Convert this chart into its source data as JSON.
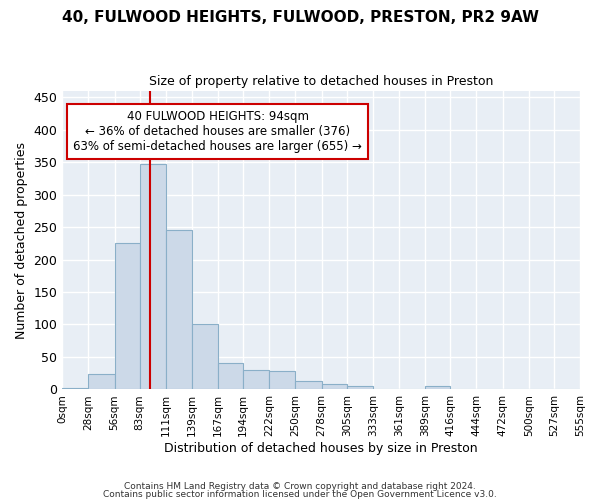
{
  "title": "40, FULWOOD HEIGHTS, FULWOOD, PRESTON, PR2 9AW",
  "subtitle": "Size of property relative to detached houses in Preston",
  "xlabel": "Distribution of detached houses by size in Preston",
  "ylabel": "Number of detached properties",
  "bar_color": "#ccd9e8",
  "bar_edge_color": "#8aafc8",
  "marker_line_color": "#cc0000",
  "marker_value": 94,
  "annotation_title": "40 FULWOOD HEIGHTS: 94sqm",
  "annotation_line1": "← 36% of detached houses are smaller (376)",
  "annotation_line2": "63% of semi-detached houses are larger (655) →",
  "annotation_box_color": "#ffffff",
  "annotation_box_edge_color": "#cc0000",
  "bins": [
    0,
    28,
    56,
    83,
    111,
    139,
    167,
    194,
    222,
    250,
    278,
    305,
    333,
    361,
    389,
    416,
    444,
    472,
    500,
    527,
    555
  ],
  "tick_labels": [
    "0sqm",
    "28sqm",
    "56sqm",
    "83sqm",
    "111sqm",
    "139sqm",
    "167sqm",
    "194sqm",
    "222sqm",
    "250sqm",
    "278sqm",
    "305sqm",
    "333sqm",
    "361sqm",
    "389sqm",
    "416sqm",
    "444sqm",
    "472sqm",
    "500sqm",
    "527sqm",
    "555sqm"
  ],
  "bar_heights": [
    2,
    24,
    226,
    347,
    246,
    101,
    40,
    30,
    29,
    13,
    9,
    6,
    1,
    0,
    5,
    0,
    1,
    0,
    0,
    1
  ],
  "ylim": [
    0,
    460
  ],
  "yticks": [
    0,
    50,
    100,
    150,
    200,
    250,
    300,
    350,
    400,
    450
  ],
  "footer1": "Contains HM Land Registry data © Crown copyright and database right 2024.",
  "footer2": "Contains public sector information licensed under the Open Government Licence v3.0.",
  "bg_color": "#ffffff",
  "plot_bg_color": "#e8eef5"
}
